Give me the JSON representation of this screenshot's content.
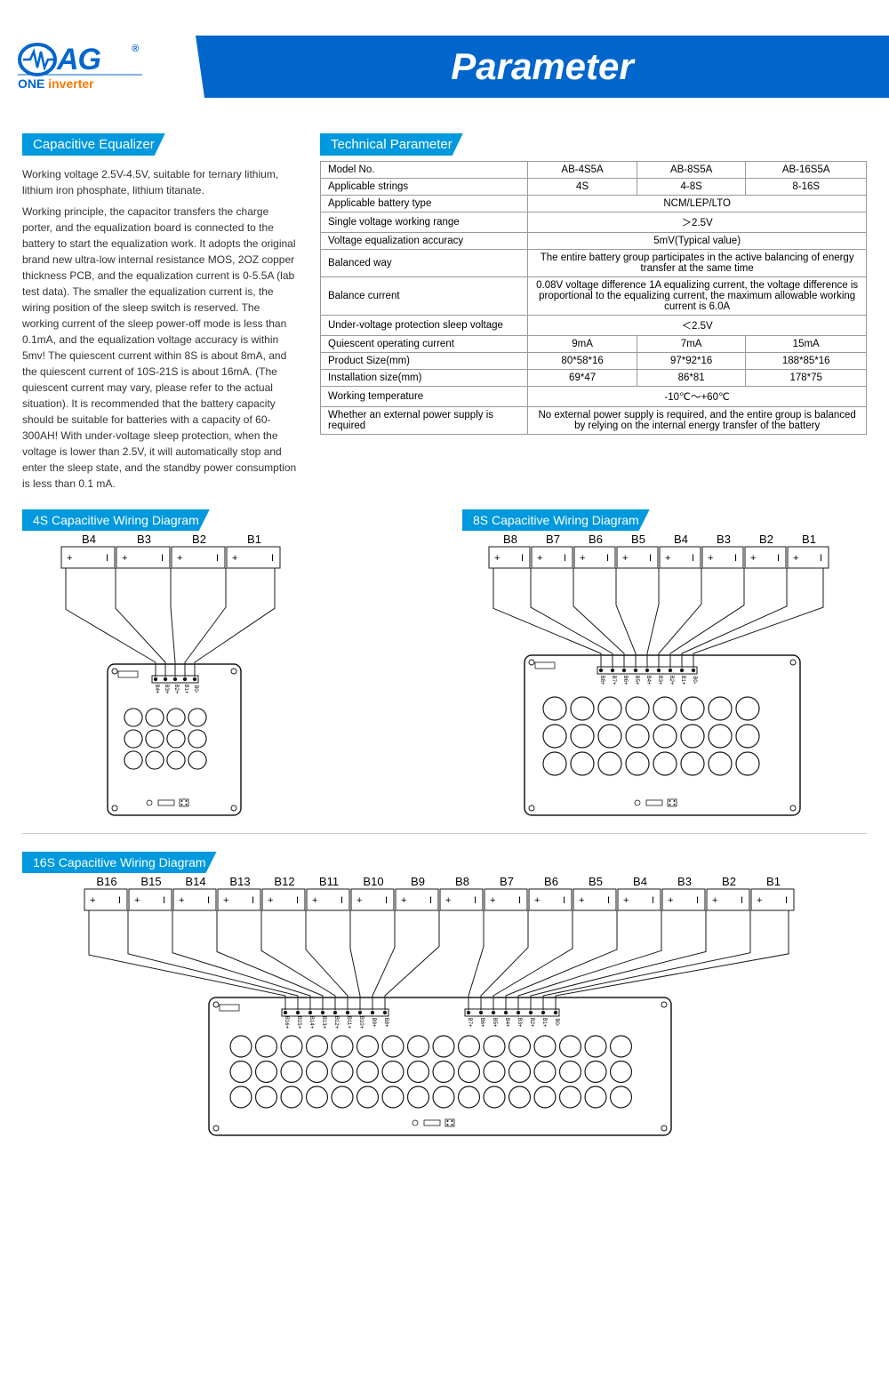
{
  "header": {
    "banner_title": "Parameter",
    "logo_main": "OAG",
    "logo_sub_one": "ONE ",
    "logo_sub_inv": "inverter"
  },
  "left_section": {
    "title": "Capacitive Equalizer",
    "p1": "Working voltage 2.5V-4.5V, suitable for ternary lithium, lithium iron phosphate, lithium titanate.",
    "p2": "Working principle, the capacitor transfers the charge porter, and the equalization board is connected to the battery to start the equalization work. It adopts the original brand new ultra-low internal resistance MOS, 2OZ copper thickness PCB, and the equalization current is 0-5.5A (lab test data). The smaller the equalization current is, the wiring position of the sleep switch is reserved. The working current of the sleep power-off mode is less than 0.1mA, and the equalization voltage accuracy is within 5mv! The quiescent current within 8S is about 8mA, and the quiescent current of 10S-21S is about 16mA. (The quiescent current may vary, please refer to the actual situation). It is recommended that the battery capacity should be suitable for batteries with a capacity of 60-300AH! With under-voltage sleep protection, when the voltage is lower than 2.5V, it will automatically stop and enter the sleep state, and the standby power consumption is less than 0.1 mA."
  },
  "table": {
    "title": "Technical Parameter",
    "rows": [
      {
        "label": "Model No.",
        "cols": [
          "AB-4S5A",
          "AB-8S5A",
          "AB-16S5A"
        ]
      },
      {
        "label": "Applicable strings",
        "cols": [
          "4S",
          "4-8S",
          "8-16S"
        ]
      },
      {
        "label": "Applicable battery type",
        "span": "NCM/LEP/LTO"
      },
      {
        "label": "Single voltage working range",
        "span": "＞2.5V"
      },
      {
        "label": "Voltage equalization accuracy",
        "span": "5mV(Typical value)"
      },
      {
        "label": "Balanced way",
        "span": "The entire battery group participates in the active balancing of energy transfer at the same time"
      },
      {
        "label": "Balance current",
        "span": "0.08V voltage difference 1A equalizing current, the voltage difference is proportional to the equalizing current, the maximum allowable working current is 6.0A"
      },
      {
        "label": "Under-voltage protection sleep voltage",
        "span": "＜2.5V"
      },
      {
        "label": "Quiescent operating current",
        "cols": [
          "9mA",
          "7mA",
          "15mA"
        ]
      },
      {
        "label": "Product Size(mm)",
        "cols": [
          "80*58*16",
          "97*92*16",
          "188*85*16"
        ]
      },
      {
        "label": "Installation size(mm)",
        "cols": [
          "69*47",
          "86*81",
          "178*75"
        ]
      },
      {
        "label": "Working temperature",
        "span": "-10℃～+60℃"
      },
      {
        "label": "Whether an external power supply is required",
        "span": "No external power supply is required, and the entire group is balanced by relying on the internal energy transfer of the battery"
      }
    ]
  },
  "diagrams": {
    "d4": {
      "title": "4S Capacitive Wiring Diagram",
      "cells": [
        "B4",
        "B3",
        "B2",
        "B1"
      ]
    },
    "d8": {
      "title": "8S Capacitive Wiring Diagram",
      "cells": [
        "B8",
        "B7",
        "B6",
        "B5",
        "B4",
        "B3",
        "B2",
        "B1"
      ]
    },
    "d16": {
      "title": "16S Capacitive Wiring Diagram",
      "cells": [
        "B16",
        "B15",
        "B14",
        "B13",
        "B12",
        "B11",
        "B10",
        "B9",
        "B8",
        "B7",
        "B6",
        "B5",
        "B4",
        "B3",
        "B2",
        "B1"
      ]
    }
  },
  "colors": {
    "accent": "#0099dd",
    "banner": "#0066cc",
    "border": "#999",
    "pcb_stroke": "#1a1a1a"
  }
}
